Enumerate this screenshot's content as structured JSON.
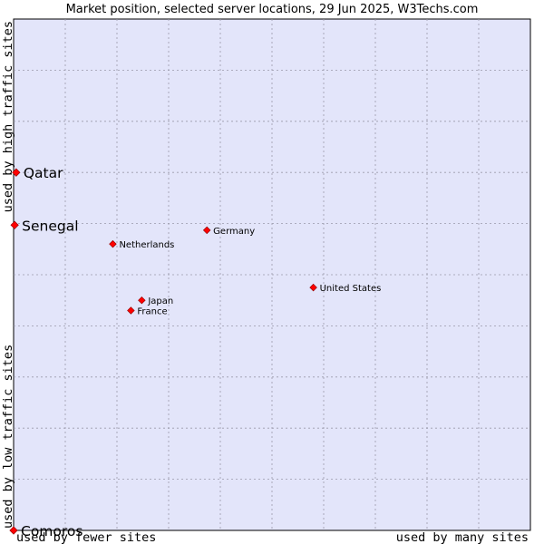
{
  "chart_data": {
    "type": "scatter",
    "title": "Market position, selected server locations, 29 Jun 2025, W3Techs.com",
    "xlabel_left": "used by fewer sites",
    "xlabel_right": "used by many sites",
    "ylabel_bottom": "used by low traffic sites",
    "ylabel_top": "used by high traffic sites",
    "xlim": [
      0,
      10
    ],
    "ylim": [
      0,
      10
    ],
    "grid": true,
    "marker_color": "#ff0000",
    "plot_background": "#e3e5fa",
    "points": [
      {
        "name": "Qatar",
        "x": 0.05,
        "y": 7.0,
        "label_size": "large"
      },
      {
        "name": "Senegal",
        "x": 0.02,
        "y": 5.97,
        "label_size": "large"
      },
      {
        "name": "Comoros",
        "x": 0.0,
        "y": 0.0,
        "label_size": "large"
      },
      {
        "name": "Netherlands",
        "x": 1.92,
        "y": 5.6,
        "label_size": "small"
      },
      {
        "name": "Germany",
        "x": 3.74,
        "y": 5.87,
        "label_size": "small"
      },
      {
        "name": "United States",
        "x": 5.8,
        "y": 4.75,
        "label_size": "small"
      },
      {
        "name": "Japan",
        "x": 2.48,
        "y": 4.5,
        "label_size": "small"
      },
      {
        "name": "France",
        "x": 2.27,
        "y": 4.3,
        "label_size": "small"
      }
    ]
  }
}
